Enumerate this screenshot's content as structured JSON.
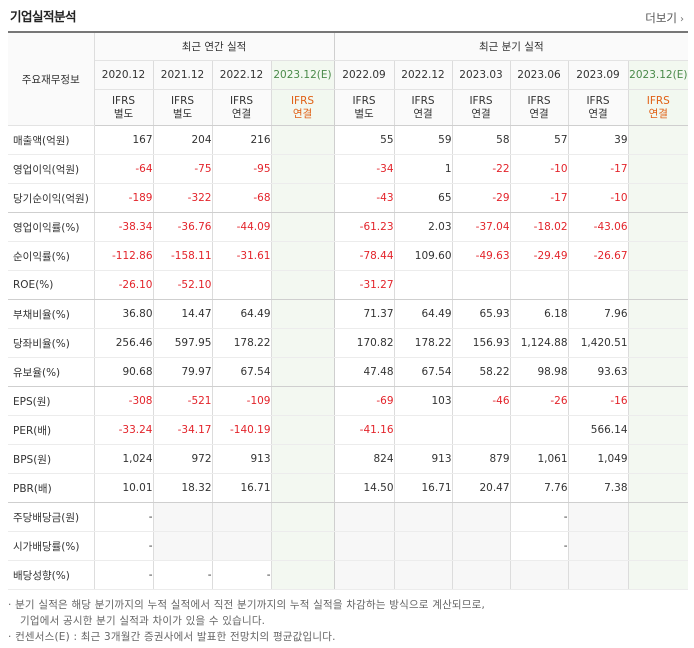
{
  "title": "기업실적분석",
  "more_label": "더보기",
  "row_header": "주요재무정보",
  "group_annual": "최근 연간 실적",
  "group_quarter": "최근 분기 실적",
  "periods": [
    "2020.12",
    "2021.12",
    "2022.12",
    "2023.12(E)",
    "2022.09",
    "2022.12",
    "2023.03",
    "2023.06",
    "2023.09",
    "2023.12(E)"
  ],
  "ifrs_types": [
    [
      "IFRS",
      "별도"
    ],
    [
      "IFRS",
      "별도"
    ],
    [
      "IFRS",
      "연결"
    ],
    [
      "IFRS",
      "연결"
    ],
    [
      "IFRS",
      "별도"
    ],
    [
      "IFRS",
      "연결"
    ],
    [
      "IFRS",
      "연결"
    ],
    [
      "IFRS",
      "연결"
    ],
    [
      "IFRS",
      "연결"
    ],
    [
      "IFRS",
      "연결"
    ]
  ],
  "rows": [
    {
      "label": "매출액(억원)",
      "values": [
        "167",
        "204",
        "216",
        "",
        "55",
        "59",
        "58",
        "57",
        "39",
        ""
      ]
    },
    {
      "label": "영업이익(억원)",
      "values": [
        "-64",
        "-75",
        "-95",
        "",
        "-34",
        "1",
        "-22",
        "-10",
        "-17",
        ""
      ]
    },
    {
      "label": "당기순이익(억원)",
      "values": [
        "-189",
        "-322",
        "-68",
        "",
        "-43",
        "65",
        "-29",
        "-17",
        "-10",
        ""
      ]
    },
    {
      "label": "영업이익률(%)",
      "values": [
        "-38.34",
        "-36.76",
        "-44.09",
        "",
        "-61.23",
        "2.03",
        "-37.04",
        "-18.02",
        "-43.06",
        ""
      ]
    },
    {
      "label": "순이익률(%)",
      "values": [
        "-112.86",
        "-158.11",
        "-31.61",
        "",
        "-78.44",
        "109.60",
        "-49.63",
        "-29.49",
        "-26.67",
        ""
      ]
    },
    {
      "label": "ROE(%)",
      "values": [
        "-26.10",
        "-52.10",
        "",
        "",
        "-31.27",
        "",
        "",
        "",
        "",
        ""
      ]
    },
    {
      "label": "부채비율(%)",
      "values": [
        "36.80",
        "14.47",
        "64.49",
        "",
        "71.37",
        "64.49",
        "65.93",
        "6.18",
        "7.96",
        ""
      ]
    },
    {
      "label": "당좌비율(%)",
      "values": [
        "256.46",
        "597.95",
        "178.22",
        "",
        "170.82",
        "178.22",
        "156.93",
        "1,124.88",
        "1,420.51",
        ""
      ]
    },
    {
      "label": "유보율(%)",
      "values": [
        "90.68",
        "79.97",
        "67.54",
        "",
        "47.48",
        "67.54",
        "58.22",
        "98.98",
        "93.63",
        ""
      ]
    },
    {
      "label": "EPS(원)",
      "values": [
        "-308",
        "-521",
        "-109",
        "",
        "-69",
        "103",
        "-46",
        "-26",
        "-16",
        ""
      ]
    },
    {
      "label": "PER(배)",
      "values": [
        "-33.24",
        "-34.17",
        "-140.19",
        "",
        "-41.16",
        "",
        "",
        "",
        "566.14",
        ""
      ]
    },
    {
      "label": "BPS(원)",
      "values": [
        "1,024",
        "972",
        "913",
        "",
        "824",
        "913",
        "879",
        "1,061",
        "1,049",
        ""
      ]
    },
    {
      "label": "PBR(배)",
      "values": [
        "10.01",
        "18.32",
        "16.71",
        "",
        "14.50",
        "16.71",
        "20.47",
        "7.76",
        "7.38",
        ""
      ]
    },
    {
      "label": "주당배당금(원)",
      "values": [
        "-",
        "",
        "",
        "",
        "",
        "",
        "",
        "-",
        "",
        ""
      ]
    },
    {
      "label": "시가배당률(%)",
      "values": [
        "-",
        "",
        "",
        "",
        "",
        "",
        "",
        "-",
        "",
        ""
      ]
    },
    {
      "label": "배당성향(%)",
      "values": [
        "-",
        "-",
        "-",
        "",
        "",
        "",
        "",
        "",
        "",
        ""
      ]
    }
  ],
  "notes": [
    "· 분기 실적은 해당 분기까지의 누적 실적에서 직전 분기까지의 누적 실적을 차감하는 방식으로 계산되므로,",
    "  기업에서 공시한 분기 실적과 차이가 있을 수 있습니다.",
    "· 컨센서스(E) : 최근 3개월간 증권사에서 발표한 전망치의 평균값입니다."
  ],
  "colors": {
    "negative": "#e3242b",
    "ifrs": "#e06014",
    "estimate_bg": "#f3f8f1",
    "estimate_text": "#4a8a4a"
  }
}
